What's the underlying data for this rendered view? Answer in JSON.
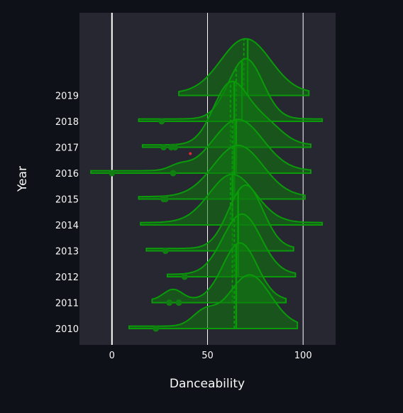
{
  "chart_data": {
    "type": "violin",
    "orientation": "horizontal",
    "side": "positive",
    "xlabel": "Danceability",
    "ylabel": "Year",
    "xlim": [
      -17,
      117
    ],
    "x_ticks": [
      0,
      50,
      100
    ],
    "grid": true,
    "legend": "none",
    "colors": {
      "background": "#0e1117",
      "plot_bg": "#262730",
      "grid": "#ffffff",
      "fill": "#0f7a0f",
      "line": "#0a9a0a",
      "outlier": "#117e11",
      "highlight_point": "#d9302c"
    },
    "series": [
      {
        "name": "2010",
        "min": 9,
        "max": 97,
        "median": 65,
        "mean": 64,
        "peaks": [
          {
            "x": 72,
            "h": 0.85,
            "w": 11
          },
          {
            "x": 48,
            "h": 0.22,
            "w": 6
          }
        ],
        "outliers": [
          23
        ]
      },
      {
        "name": "2011",
        "min": 21,
        "max": 91,
        "median": 65,
        "mean": 63,
        "peaks": [
          {
            "x": 67,
            "h": 0.95,
            "w": 9
          },
          {
            "x": 32,
            "h": 0.18,
            "w": 5
          }
        ],
        "outliers": [
          30,
          35
        ]
      },
      {
        "name": "2012",
        "min": 29,
        "max": 96,
        "median": 66,
        "mean": 64,
        "peaks": [
          {
            "x": 68,
            "h": 1.0,
            "w": 10
          }
        ],
        "outliers": [
          38
        ]
      },
      {
        "name": "2013",
        "min": 18,
        "max": 95,
        "median": 66,
        "mean": 63,
        "peaks": [
          {
            "x": 70,
            "h": 1.05,
            "w": 9
          }
        ],
        "outliers": [
          28
        ]
      },
      {
        "name": "2014",
        "min": 15,
        "max": 110,
        "median": 63,
        "mean": 62,
        "peaks": [
          {
            "x": 63,
            "h": 0.8,
            "w": 12
          }
        ],
        "outliers": []
      },
      {
        "name": "2015",
        "min": 14,
        "max": 101,
        "median": 64,
        "mean": 63,
        "peaks": [
          {
            "x": 66,
            "h": 0.85,
            "w": 13
          }
        ],
        "outliers": [
          27,
          28
        ]
      },
      {
        "name": "2016",
        "min": -11,
        "max": 104,
        "median": 65,
        "mean": 63,
        "peaks": [
          {
            "x": 66,
            "h": 0.85,
            "w": 13
          },
          {
            "x": 35,
            "h": 0.08,
            "w": 5
          }
        ],
        "outliers": [
          0,
          32
        ]
      },
      {
        "name": "2017",
        "min": 16,
        "max": 104,
        "median": 64,
        "mean": 62,
        "peaks": [
          {
            "x": 62,
            "h": 1.0,
            "w": 9
          },
          {
            "x": 80,
            "h": 0.35,
            "w": 9
          }
        ],
        "outliers": [
          27,
          31,
          33
        ],
        "highlight": [
          41
        ]
      },
      {
        "name": "2018",
        "min": 14,
        "max": 110,
        "median": 68,
        "mean": 65,
        "peaks": [
          {
            "x": 70,
            "h": 1.0,
            "w": 9
          }
        ],
        "outliers": [
          26
        ]
      },
      {
        "name": "2019",
        "min": 35,
        "max": 103,
        "median": 71,
        "mean": 69,
        "peaks": [
          {
            "x": 70,
            "h": 0.9,
            "w": 13
          }
        ],
        "outliers": []
      }
    ]
  }
}
